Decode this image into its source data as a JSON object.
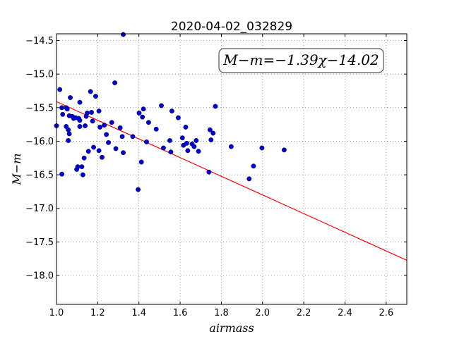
{
  "chart_data": {
    "type": "scatter",
    "title": "2020-04-02_032829",
    "xlabel": "airmass",
    "ylabel": "M−m",
    "annotation": "M−m=−1.39χ−14.02",
    "xlim": [
      1.0,
      2.7
    ],
    "ylim": [
      -18.43,
      -14.4
    ],
    "y_inverted": true,
    "grid": true,
    "xticks": [
      1.0,
      1.2,
      1.4,
      1.6,
      1.8,
      2.0,
      2.2,
      2.4,
      2.6
    ],
    "xtick_labels": [
      "1.0",
      "1.2",
      "1.4",
      "1.6",
      "1.8",
      "2.0",
      "2.2",
      "2.4",
      "2.6"
    ],
    "yticks": [
      -14.5,
      -15.0,
      -15.5,
      -16.0,
      -16.5,
      -17.0,
      -17.5,
      -18.0
    ],
    "ytick_labels": [
      "−14.5",
      "−15.0",
      "−15.5",
      "−16.0",
      "−16.5",
      "−17.0",
      "−17.5",
      "−18.0"
    ],
    "fit": {
      "slope": -1.39,
      "intercept": -14.02,
      "color": "#ff0000"
    },
    "point_color": "#0000cc",
    "points": [
      [
        1.0,
        -15.77
      ],
      [
        1.016,
        -15.23
      ],
      [
        1.026,
        -15.5
      ],
      [
        1.026,
        -16.49
      ],
      [
        1.03,
        -15.6
      ],
      [
        1.047,
        -15.5
      ],
      [
        1.047,
        -15.78
      ],
      [
        1.052,
        -15.52
      ],
      [
        1.057,
        -15.83
      ],
      [
        1.057,
        -15.99
      ],
      [
        1.062,
        -15.62
      ],
      [
        1.062,
        -15.89
      ],
      [
        1.067,
        -15.35
      ],
      [
        1.077,
        -15.63
      ],
      [
        1.083,
        -15.66
      ],
      [
        1.093,
        -15.65
      ],
      [
        1.098,
        -16.42
      ],
      [
        1.103,
        -16.38
      ],
      [
        1.108,
        -15.66
      ],
      [
        1.113,
        -15.42
      ],
      [
        1.113,
        -15.69
      ],
      [
        1.113,
        -15.78
      ],
      [
        1.123,
        -16.38
      ],
      [
        1.128,
        -16.5
      ],
      [
        1.134,
        -16.25
      ],
      [
        1.139,
        -15.77
      ],
      [
        1.144,
        -15.63
      ],
      [
        1.149,
        -15.58
      ],
      [
        1.155,
        -16.15
      ],
      [
        1.165,
        -15.26
      ],
      [
        1.17,
        -15.57
      ],
      [
        1.175,
        -15.7
      ],
      [
        1.18,
        -16.09
      ],
      [
        1.19,
        -15.33
      ],
      [
        1.206,
        -16.14
      ],
      [
        1.206,
        -15.55
      ],
      [
        1.211,
        -15.79
      ],
      [
        1.221,
        -16.24
      ],
      [
        1.232,
        -15.76
      ],
      [
        1.242,
        -15.9
      ],
      [
        1.252,
        -16.02
      ],
      [
        1.268,
        -15.72
      ],
      [
        1.283,
        -15.13
      ],
      [
        1.288,
        -16.11
      ],
      [
        1.309,
        -15.8
      ],
      [
        1.319,
        -15.93
      ],
      [
        1.324,
        -16.17
      ],
      [
        1.324,
        -14.41
      ],
      [
        1.37,
        -15.93
      ],
      [
        1.396,
        -16.72
      ],
      [
        1.401,
        -15.58
      ],
      [
        1.412,
        -16.31
      ],
      [
        1.417,
        -15.64
      ],
      [
        1.422,
        -15.52
      ],
      [
        1.437,
        -16.01
      ],
      [
        1.447,
        -15.72
      ],
      [
        1.484,
        -15.82
      ],
      [
        1.509,
        -15.47
      ],
      [
        1.519,
        -16.1
      ],
      [
        1.55,
        -15.99
      ],
      [
        1.555,
        -16.16
      ],
      [
        1.56,
        -15.55
      ],
      [
        1.591,
        -15.65
      ],
      [
        1.611,
        -15.95
      ],
      [
        1.616,
        -16.06
      ],
      [
        1.627,
        -15.79
      ],
      [
        1.632,
        -16.03
      ],
      [
        1.637,
        -16.14
      ],
      [
        1.658,
        -16.04
      ],
      [
        1.668,
        -16.08
      ],
      [
        1.678,
        -15.99
      ],
      [
        1.689,
        -16.15
      ],
      [
        1.74,
        -16.46
      ],
      [
        1.745,
        -15.83
      ],
      [
        1.75,
        -15.98
      ],
      [
        1.76,
        -15.88
      ],
      [
        1.771,
        -15.48
      ],
      [
        1.848,
        -16.08
      ],
      [
        1.935,
        -16.56
      ],
      [
        1.956,
        -16.37
      ],
      [
        1.997,
        -16.1
      ],
      [
        2.105,
        -16.13
      ]
    ]
  }
}
